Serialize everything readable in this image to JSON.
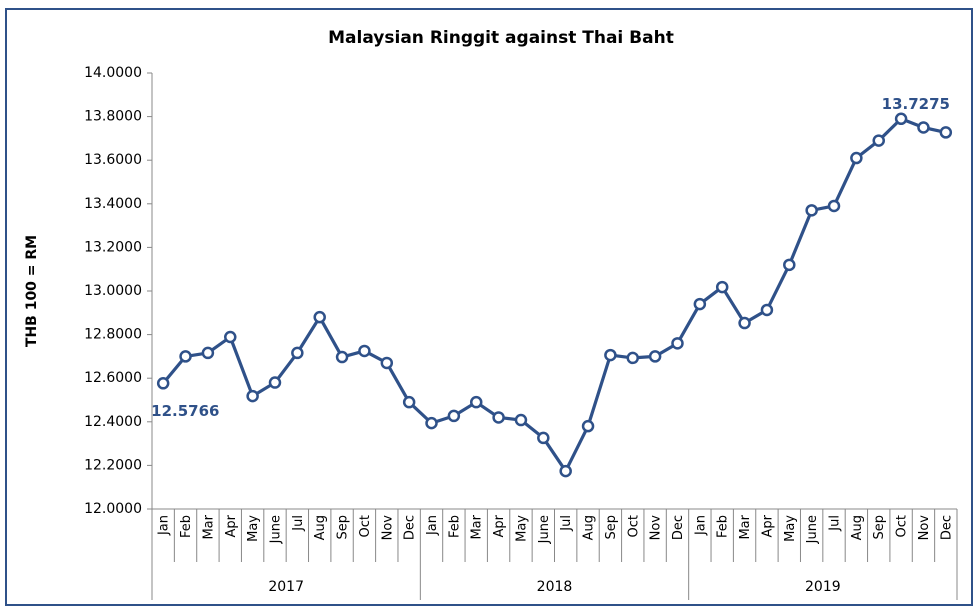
{
  "chart_data": {
    "type": "line",
    "title": "Malaysian Ringgit against Thai Baht",
    "y_label": "THB 100 = RM",
    "categories": [
      "Jan",
      "Feb",
      "Mar",
      "Apr",
      "May",
      "June",
      "Jul",
      "Aug",
      "Sep",
      "Oct",
      "Nov",
      "Dec",
      "Jan",
      "Feb",
      "Mar",
      "Apr",
      "May",
      "June",
      "Jul",
      "Aug",
      "Sep",
      "Oct",
      "Nov",
      "Dec",
      "Jan",
      "Feb",
      "Mar",
      "Apr",
      "May",
      "June",
      "Jul",
      "Aug",
      "Sep",
      "Oct",
      "Nov",
      "Dec"
    ],
    "years": [
      "2017",
      "2018",
      "2019"
    ],
    "series": [
      {
        "name": "THB 100 = RM",
        "color": "#2f5189",
        "values": [
          12.5766,
          12.7,
          12.716,
          12.789,
          12.518,
          12.58,
          12.716,
          12.88,
          12.697,
          12.725,
          12.67,
          12.49,
          12.394,
          12.427,
          12.49,
          12.42,
          12.408,
          12.326,
          12.174,
          12.38,
          12.706,
          12.693,
          12.7,
          12.76,
          12.94,
          13.018,
          12.853,
          12.913,
          13.12,
          13.37,
          13.39,
          13.61,
          13.69,
          13.79,
          13.75,
          13.7275
        ],
        "value_labels": [
          "12.5766",
          null,
          null,
          null,
          null,
          null,
          null,
          null,
          null,
          null,
          null,
          null,
          null,
          null,
          null,
          null,
          null,
          null,
          null,
          null,
          null,
          null,
          null,
          null,
          null,
          null,
          null,
          null,
          null,
          null,
          null,
          null,
          null,
          null,
          null,
          "13.7275"
        ]
      }
    ],
    "ylim": [
      12.0,
      14.0
    ],
    "yticks": [
      {
        "value": 12.0,
        "label": "12.0000"
      },
      {
        "value": 12.2,
        "label": "12.2000"
      },
      {
        "value": 12.4,
        "label": "12.4000"
      },
      {
        "value": 12.6,
        "label": "12.6000"
      },
      {
        "value": 12.8,
        "label": "12.8000"
      },
      {
        "value": 13.0,
        "label": "13.0000"
      },
      {
        "value": 13.2,
        "label": "13.2000"
      },
      {
        "value": 13.4,
        "label": "13.4000"
      },
      {
        "value": 13.6,
        "label": "13.6000"
      },
      {
        "value": 13.8,
        "label": "13.8000"
      },
      {
        "value": 14.0,
        "label": "14.0000"
      }
    ],
    "grid": false,
    "border_color": "#2f5189"
  }
}
